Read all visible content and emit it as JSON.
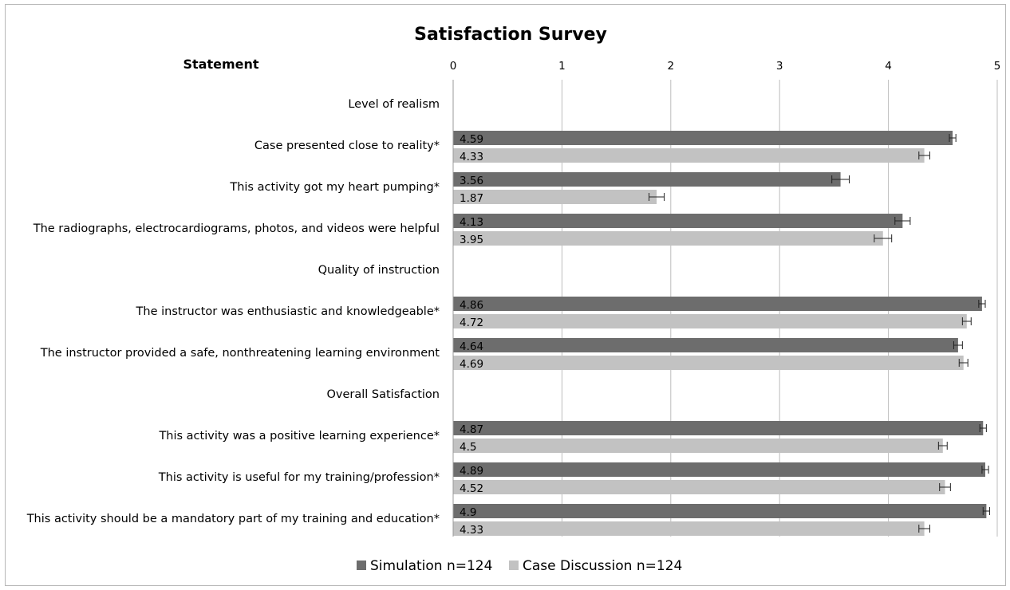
{
  "chart_data": {
    "type": "bar",
    "orientation": "horizontal",
    "title": "Satisfaction Survey",
    "category_header": "Statement",
    "xlim": [
      0,
      5
    ],
    "x_ticks": [
      0,
      1,
      2,
      3,
      4,
      5
    ],
    "grid": true,
    "legend_position": "bottom",
    "categories": [
      "Level of realism",
      "Case presented close to reality*",
      "This activity got my heart pumping*",
      "The radiographs, electrocardiograms, photos, and videos were helpful",
      "Quality of instruction",
      "The instructor was enthusiastic and knowledgeable*",
      "The instructor provided a safe, nonthreatening learning environment",
      "Overall Satisfaction",
      "This activity was a positive learning experience*",
      "This activity is useful for my training/profession*",
      "This activity should be a mandatory part of my training and education*"
    ],
    "series": [
      {
        "name": "Simulation n=124",
        "color": "#6d6d6d",
        "values": [
          null,
          4.59,
          3.56,
          4.13,
          null,
          4.86,
          4.64,
          null,
          4.87,
          4.89,
          4.9
        ],
        "labels": [
          "",
          "4.59",
          "3.56",
          "4.13",
          "",
          "4.86",
          "4.64",
          "",
          "4.87",
          "4.89",
          "4.9"
        ],
        "errors": [
          null,
          0.03,
          0.08,
          0.07,
          null,
          0.03,
          0.04,
          null,
          0.03,
          0.03,
          0.03
        ]
      },
      {
        "name": "Case Discussion n=124",
        "color": "#c2c2c2",
        "values": [
          null,
          4.33,
          1.87,
          3.95,
          null,
          4.72,
          4.69,
          null,
          4.5,
          4.52,
          4.33
        ],
        "labels": [
          "",
          "4.33",
          "1.87",
          "3.95",
          "",
          "4.72",
          "4.69",
          "",
          "4.5",
          "4.52",
          "4.33"
        ],
        "errors": [
          null,
          0.05,
          0.07,
          0.08,
          null,
          0.04,
          0.04,
          null,
          0.04,
          0.05,
          0.05
        ]
      }
    ]
  }
}
